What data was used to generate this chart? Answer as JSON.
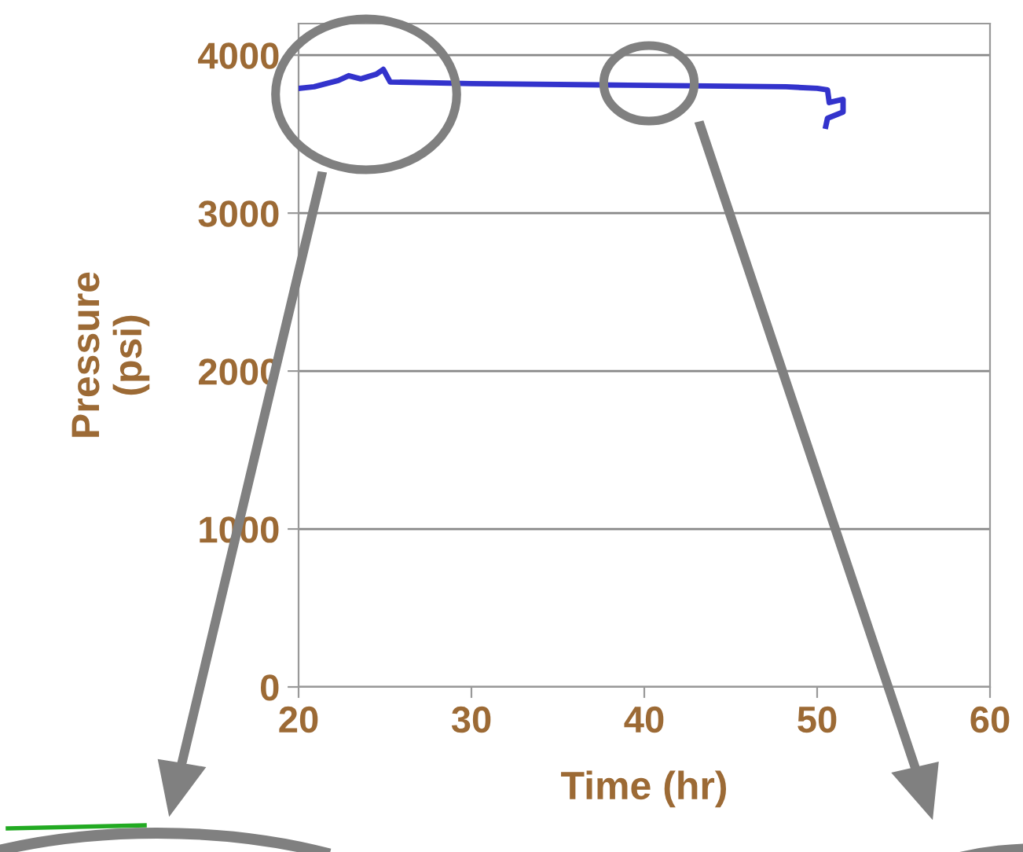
{
  "chart_data": {
    "type": "line",
    "xlabel": "Time (hr)",
    "ylabel": "Pressure\n(psi)",
    "x": [
      20,
      20.9,
      22.3,
      22.9,
      23.6,
      24.5,
      24.9,
      25.3,
      30,
      39.1,
      48.2,
      50,
      50.6,
      50.7,
      51.5,
      51.5,
      50.6,
      50.5
    ],
    "series": [
      {
        "color": "#3333cc",
        "values": [
          3790,
          3800,
          3840,
          3870,
          3850,
          3880,
          3910,
          3830,
          3820,
          3810,
          3800,
          3790,
          3780,
          3700,
          3720,
          3640,
          3600,
          3550
        ]
      }
    ],
    "xlim": [
      20,
      60
    ],
    "xticks": [
      20,
      30,
      40,
      50,
      60
    ],
    "ylim": [
      0,
      4200
    ],
    "yticks": [
      0,
      1000,
      2000,
      3000,
      4000
    ],
    "grid": "y",
    "marker": "none",
    "line_style": "solid",
    "legend": false
  }
}
